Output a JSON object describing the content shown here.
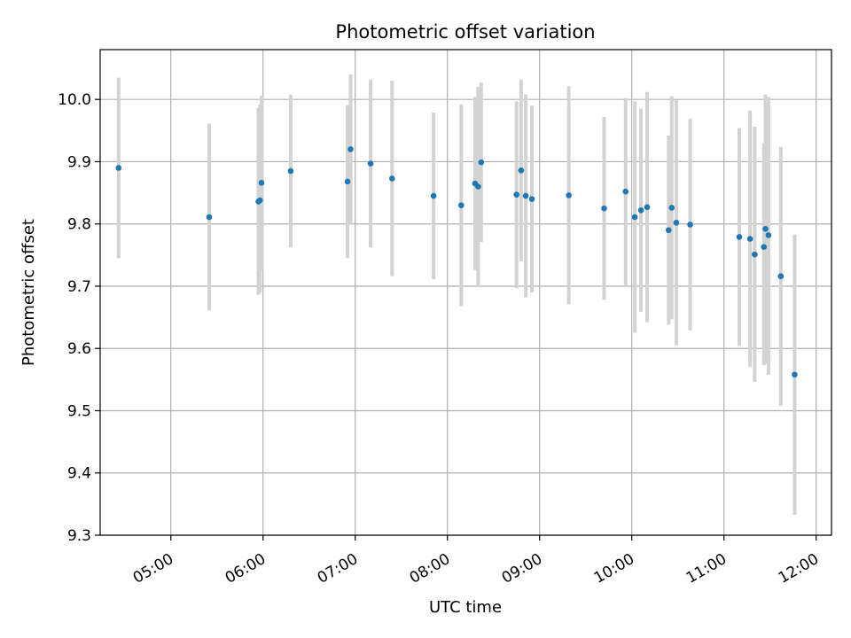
{
  "chart_data": {
    "type": "scatter",
    "title": "Photometric offset variation",
    "xlabel": "UTC time",
    "ylabel": "Photometric offset",
    "xlim": [
      "04:14",
      "12:10"
    ],
    "ylim": [
      9.3,
      10.08
    ],
    "x_ticks": [
      "05:00",
      "06:00",
      "07:00",
      "08:00",
      "09:00",
      "10:00",
      "11:00",
      "12:00"
    ],
    "y_ticks": [
      "9.3",
      "9.4",
      "9.5",
      "9.6",
      "9.7",
      "9.8",
      "9.9",
      "10.0"
    ],
    "grid": true,
    "point_color": "#1f77b4",
    "errorbar_color": "#d3d3d3",
    "points": [
      {
        "x": "04:26",
        "y": 9.89,
        "ylo": 9.745,
        "yhi": 10.035
      },
      {
        "x": "05:25",
        "y": 9.811,
        "ylo": 9.661,
        "yhi": 9.961
      },
      {
        "x": "05:57",
        "y": 9.836,
        "ylo": 9.686,
        "yhi": 9.986
      },
      {
        "x": "05:58",
        "y": 9.838,
        "ylo": 9.69,
        "yhi": 9.992
      },
      {
        "x": "05:59",
        "y": 9.866,
        "ylo": 9.726,
        "yhi": 10.006
      },
      {
        "x": "06:18",
        "y": 9.885,
        "ylo": 9.762,
        "yhi": 10.008
      },
      {
        "x": "06:55",
        "y": 9.868,
        "ylo": 9.745,
        "yhi": 9.991
      },
      {
        "x": "06:57",
        "y": 9.92,
        "ylo": 9.8,
        "yhi": 10.04
      },
      {
        "x": "07:10",
        "y": 9.897,
        "ylo": 9.762,
        "yhi": 10.032
      },
      {
        "x": "07:24",
        "y": 9.873,
        "ylo": 9.716,
        "yhi": 10.03
      },
      {
        "x": "07:51",
        "y": 9.845,
        "ylo": 9.711,
        "yhi": 9.979
      },
      {
        "x": "08:09",
        "y": 9.83,
        "ylo": 9.668,
        "yhi": 9.992
      },
      {
        "x": "08:18",
        "y": 9.865,
        "ylo": 9.726,
        "yhi": 10.004
      },
      {
        "x": "08:20",
        "y": 9.86,
        "ylo": 9.7,
        "yhi": 10.02
      },
      {
        "x": "08:22",
        "y": 9.899,
        "ylo": 9.771,
        "yhi": 10.027
      },
      {
        "x": "08:45",
        "y": 9.847,
        "ylo": 9.697,
        "yhi": 9.997
      },
      {
        "x": "08:48",
        "y": 9.886,
        "ylo": 9.74,
        "yhi": 10.032
      },
      {
        "x": "08:51",
        "y": 9.845,
        "ylo": 9.682,
        "yhi": 10.008
      },
      {
        "x": "08:55",
        "y": 9.84,
        "ylo": 9.69,
        "yhi": 9.99
      },
      {
        "x": "09:19",
        "y": 9.846,
        "ylo": 9.671,
        "yhi": 10.021
      },
      {
        "x": "09:42",
        "y": 9.825,
        "ylo": 9.678,
        "yhi": 9.972
      },
      {
        "x": "09:56",
        "y": 9.852,
        "ylo": 9.7,
        "yhi": 10.002
      },
      {
        "x": "10:02",
        "y": 9.811,
        "ylo": 9.625,
        "yhi": 9.997
      },
      {
        "x": "10:06",
        "y": 9.822,
        "ylo": 9.659,
        "yhi": 9.985
      },
      {
        "x": "10:10",
        "y": 9.827,
        "ylo": 9.642,
        "yhi": 10.012
      },
      {
        "x": "10:24",
        "y": 9.79,
        "ylo": 9.638,
        "yhi": 9.942
      },
      {
        "x": "10:26",
        "y": 9.826,
        "ylo": 9.647,
        "yhi": 10.005
      },
      {
        "x": "10:29",
        "y": 9.802,
        "ylo": 9.605,
        "yhi": 9.999
      },
      {
        "x": "10:38",
        "y": 9.799,
        "ylo": 9.629,
        "yhi": 9.969
      },
      {
        "x": "11:10",
        "y": 9.779,
        "ylo": 9.604,
        "yhi": 9.954
      },
      {
        "x": "11:17",
        "y": 9.776,
        "ylo": 9.57,
        "yhi": 9.982
      },
      {
        "x": "11:20",
        "y": 9.751,
        "ylo": 9.546,
        "yhi": 9.956
      },
      {
        "x": "11:26",
        "y": 9.763,
        "ylo": 9.573,
        "yhi": 9.93
      },
      {
        "x": "11:27",
        "y": 9.792,
        "ylo": 9.576,
        "yhi": 10.008
      },
      {
        "x": "11:29",
        "y": 9.782,
        "ylo": 9.558,
        "yhi": 10.004
      },
      {
        "x": "11:37",
        "y": 9.716,
        "ylo": 9.508,
        "yhi": 9.924
      },
      {
        "x": "11:46",
        "y": 9.558,
        "ylo": 9.333,
        "yhi": 9.783
      }
    ]
  }
}
